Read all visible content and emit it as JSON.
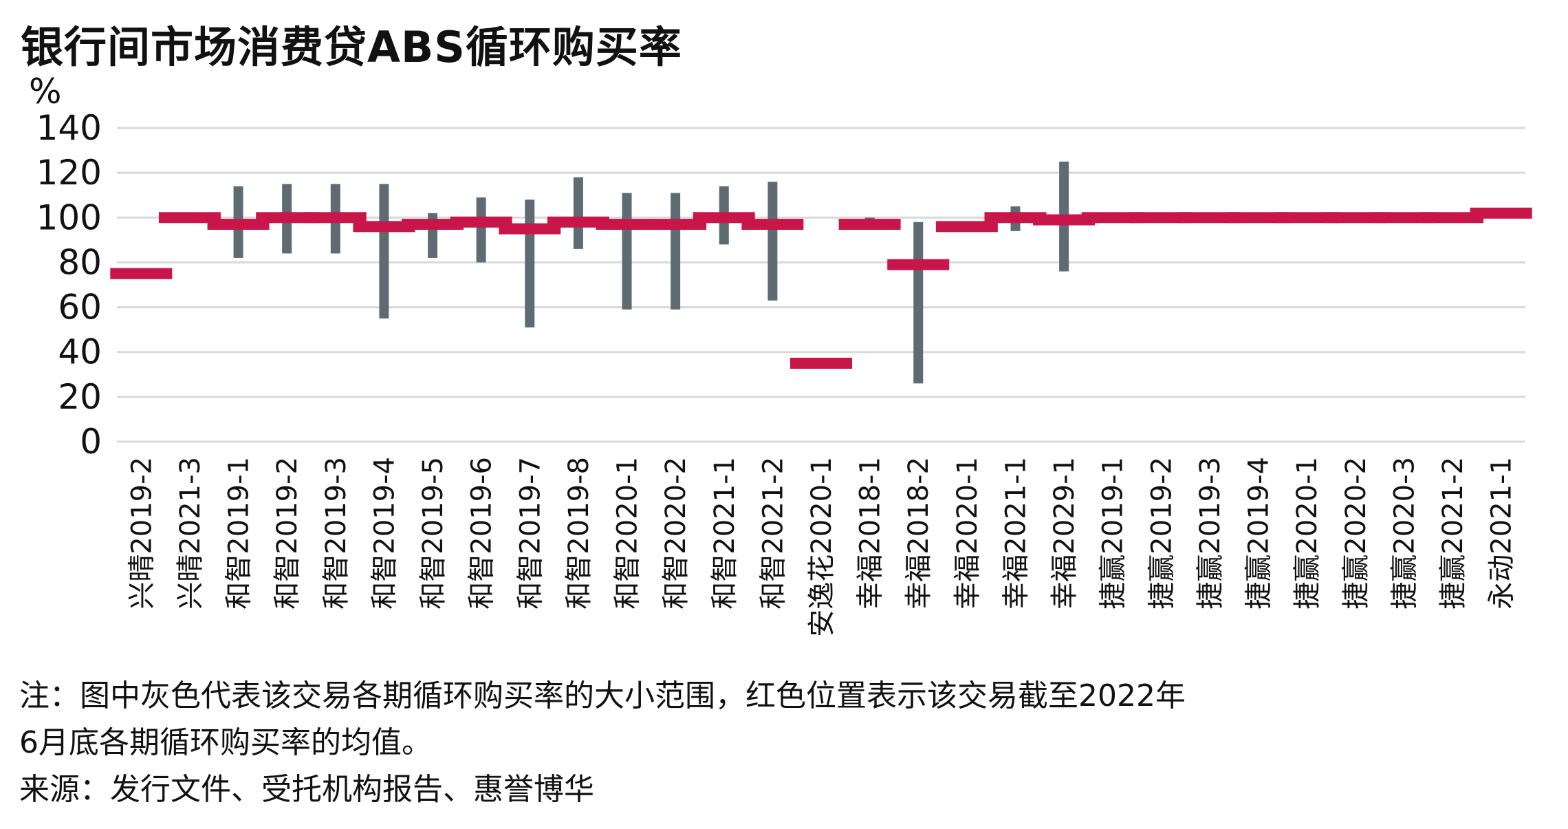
{
  "chart_data": {
    "type": "range-bar",
    "title": "银行间市场消费贷ABS循环购买率",
    "ylabel": "%",
    "ylim": [
      0,
      140
    ],
    "yticks": [
      0,
      20,
      40,
      60,
      80,
      100,
      120,
      140
    ],
    "grid": true,
    "categories": [
      "兴晴2019-2",
      "兴晴2021-3",
      "和智2019-1",
      "和智2019-2",
      "和智2019-3",
      "和智2019-4",
      "和智2019-5",
      "和智2019-6",
      "和智2019-7",
      "和智2019-8",
      "和智2020-1",
      "和智2020-2",
      "和智2021-1",
      "和智2021-2",
      "安逸花2020-1",
      "幸福2018-1",
      "幸福2018-2",
      "幸福2020-1",
      "幸福2021-1",
      "幸福2029-1",
      "捷赢2019-1",
      "捷赢2019-2",
      "捷赢2019-3",
      "捷赢2019-4",
      "捷赢2020-1",
      "捷赢2020-2",
      "捷赢2020-3",
      "捷赢2021-2",
      "永动2021-1"
    ],
    "series": [
      {
        "role": "range",
        "color": "#5f6b73",
        "min": [
          75,
          100,
          82,
          84,
          84,
          55,
          82,
          80,
          51,
          86,
          59,
          59,
          88,
          63,
          35,
          96,
          26,
          94,
          94,
          76,
          100,
          100,
          100,
          100,
          100,
          100,
          100,
          100,
          102
        ],
        "max": [
          75,
          100,
          114,
          115,
          115,
          115,
          102,
          109,
          108,
          118,
          111,
          111,
          114,
          116,
          35,
          100,
          98,
          98,
          105,
          125,
          100,
          100,
          100,
          100,
          100,
          100,
          100,
          100,
          102
        ]
      },
      {
        "role": "mean",
        "color": "#c8164a",
        "values": [
          75,
          100,
          97,
          100,
          100,
          96,
          97,
          98,
          95,
          98,
          97,
          97,
          100,
          97,
          35,
          97,
          79,
          96,
          100,
          99,
          100,
          100,
          100,
          100,
          100,
          100,
          100,
          100,
          102
        ]
      }
    ]
  },
  "notes": [
    "注：图中灰色代表该交易各期循环购买率的大小范围，红色位置表示该交易截至2022年",
    "6月底各期循环购买率的均值。",
    "来源：发行文件、受托机构报告、惠誉博华"
  ]
}
